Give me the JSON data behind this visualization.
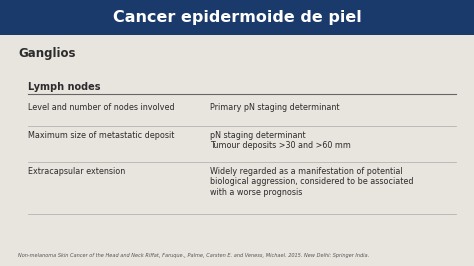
{
  "title": "Cancer epidermoide de piel",
  "title_bg": "#1a3a6b",
  "title_color": "#ffffff",
  "subtitle": "Ganglios",
  "table_header": "Lymph nodes",
  "rows": [
    {
      "col1": "Level and number of nodes involved",
      "col2": "Primary pN staging determinant"
    },
    {
      "col1": "Maximum size of metastatic deposit",
      "col2": "pN staging determinant\nTumour deposits >30 and >60 mm"
    },
    {
      "col1": "Extracapsular extension",
      "col2": "Widely regarded as a manifestation of potential\nbiological aggression, considered to be associated\nwith a worse prognosis"
    }
  ],
  "footer": "Non-melanoma Skin Cancer of the Head and Neck Riffat, Faruque., Palme, Carsten E. and Veness, Michael. 2015. New Delhi: Springer India.",
  "bg_color": "#e8e4de",
  "text_color": "#2c2c2c",
  "header_line_color": "#666666",
  "row_line_color": "#aaaaaa",
  "title_fontsize": 11.5,
  "subtitle_fontsize": 8.5,
  "table_header_fontsize": 7.0,
  "body_fontsize": 5.8,
  "footer_fontsize": 3.6
}
